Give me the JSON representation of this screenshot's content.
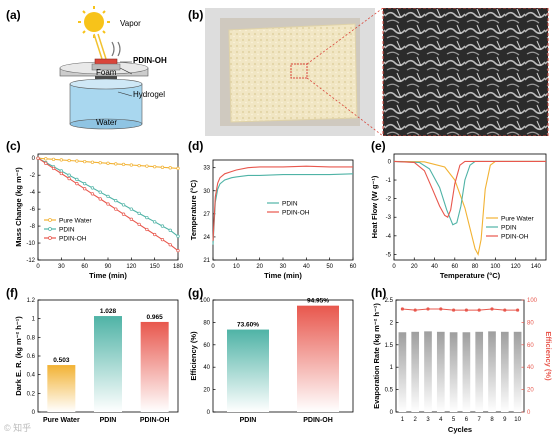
{
  "panels": {
    "a": {
      "letter": "(a)",
      "labels": {
        "vapor": "Vapor",
        "pdin_oh": "PDIN-OH",
        "foam": "Foam",
        "hydrogel": "Hydrogel",
        "water": "Water"
      }
    },
    "b": {
      "letter": "(b)"
    },
    "c": {
      "letter": "(c)"
    },
    "d": {
      "letter": "(d)"
    },
    "e": {
      "letter": "(e)"
    },
    "f": {
      "letter": "(f)"
    },
    "g": {
      "letter": "(g)"
    },
    "h": {
      "letter": "(h)"
    }
  },
  "colors": {
    "orange": "#f2b233",
    "teal": "#4fb3a6",
    "red": "#e8574d",
    "blue": "#2a6ea8"
  },
  "watermark": "© 知乎",
  "chart_data": [
    {
      "id": "c",
      "type": "line",
      "xlabel": "Time (min)",
      "ylabel": "Mass Change (kg m⁻²)",
      "xlim": [
        0,
        180
      ],
      "ylim": [
        -12,
        0.5
      ],
      "xticks": [
        0,
        30,
        60,
        90,
        120,
        150,
        180
      ],
      "yticks": [
        0,
        -2,
        -4,
        -6,
        -8,
        -10,
        -12
      ],
      "x": [
        0,
        10,
        20,
        30,
        40,
        50,
        60,
        70,
        80,
        90,
        100,
        110,
        120,
        130,
        140,
        150,
        160,
        170,
        180
      ],
      "series": [
        {
          "name": "Pure Water",
          "color": "#f2b233",
          "values": [
            0,
            -0.07,
            -0.13,
            -0.2,
            -0.27,
            -0.33,
            -0.4,
            -0.47,
            -0.53,
            -0.6,
            -0.67,
            -0.73,
            -0.8,
            -0.87,
            -0.93,
            -1.0,
            -1.07,
            -1.13,
            -1.2
          ]
        },
        {
          "name": "PDIN",
          "color": "#4fb3a6",
          "values": [
            0,
            -0.5,
            -1.0,
            -1.5,
            -2.0,
            -2.5,
            -3.0,
            -3.5,
            -4.0,
            -4.5,
            -5.0,
            -5.5,
            -6.0,
            -6.5,
            -7.0,
            -7.5,
            -8.0,
            -8.5,
            -9.2
          ]
        },
        {
          "name": "PDIN-OH",
          "color": "#e8574d",
          "values": [
            0,
            -0.6,
            -1.2,
            -1.8,
            -2.4,
            -3.0,
            -3.6,
            -4.2,
            -4.8,
            -5.4,
            -6.0,
            -6.6,
            -7.2,
            -7.8,
            -8.4,
            -9.0,
            -9.6,
            -10.2,
            -10.9
          ]
        }
      ],
      "legend": "bottom-left"
    },
    {
      "id": "d",
      "type": "line",
      "xlabel": "Time (min)",
      "ylabel": "Temperature (°C)",
      "xlim": [
        0,
        60
      ],
      "ylim": [
        21,
        34
      ],
      "xticks": [
        0,
        10,
        20,
        30,
        40,
        50,
        60
      ],
      "yticks": [
        21,
        24,
        27,
        30,
        33
      ],
      "x": [
        0,
        1,
        2,
        3,
        5,
        8,
        10,
        15,
        20,
        30,
        40,
        50,
        60
      ],
      "series": [
        {
          "name": "PDIN",
          "color": "#4fb3a6",
          "values": [
            23,
            28.5,
            30.2,
            30.9,
            31.4,
            31.7,
            31.8,
            32.0,
            32.0,
            32.1,
            32.1,
            32.1,
            32.2
          ]
        },
        {
          "name": "PDIN-OH",
          "color": "#e8574d",
          "values": [
            23.5,
            29.2,
            31.0,
            31.7,
            32.2,
            32.5,
            32.7,
            33.0,
            33.1,
            33.1,
            33.2,
            33.1,
            33.1
          ]
        }
      ],
      "legend": "center"
    },
    {
      "id": "e",
      "type": "line",
      "xlabel": "Temperature (°C)",
      "ylabel": "Heat Flow (W g⁻¹)",
      "xlim": [
        0,
        150
      ],
      "ylim": [
        -5.3,
        0.4
      ],
      "xticks": [
        0,
        20,
        40,
        60,
        80,
        100,
        120,
        140
      ],
      "yticks": [
        0,
        -1,
        -2,
        -3,
        -4,
        -5
      ],
      "series": [
        {
          "name": "Pure Water",
          "color": "#f2b233",
          "x": [
            0,
            30,
            50,
            60,
            70,
            75,
            80,
            83,
            86,
            90,
            95,
            100,
            110,
            150
          ],
          "values": [
            0,
            -0.02,
            -0.3,
            -1.0,
            -2.5,
            -3.6,
            -4.7,
            -5.0,
            -4.2,
            -1.5,
            -0.2,
            0,
            0,
            0
          ]
        },
        {
          "name": "PDIN",
          "color": "#4fb3a6",
          "x": [
            0,
            25,
            35,
            45,
            52,
            58,
            62,
            66,
            70,
            75,
            80,
            100,
            150
          ],
          "values": [
            0,
            -0.05,
            -0.4,
            -1.4,
            -2.6,
            -3.4,
            -3.3,
            -2.4,
            -1.0,
            -0.2,
            0,
            0,
            0
          ]
        },
        {
          "name": "PDIN-OH",
          "color": "#e8574d",
          "x": [
            0,
            20,
            30,
            38,
            45,
            50,
            53,
            56,
            60,
            65,
            70,
            100,
            150
          ],
          "values": [
            0,
            -0.05,
            -0.5,
            -1.5,
            -2.4,
            -2.9,
            -3.0,
            -2.6,
            -1.2,
            -0.2,
            0,
            0,
            0
          ]
        }
      ],
      "legend": "bottom-right"
    },
    {
      "id": "f",
      "type": "bar",
      "ylabel": "Dark E. R. (kg m⁻² h⁻¹)",
      "ylim": [
        0,
        1.2
      ],
      "yticks": [
        0,
        0.2,
        0.4,
        0.6,
        0.8,
        1.0,
        1.2
      ],
      "categories": [
        "Pure Water",
        "PDIN",
        "PDIN-OH"
      ],
      "values": [
        0.503,
        1.028,
        0.965
      ],
      "labels": [
        "0.503",
        "1.028",
        "0.965"
      ],
      "colors": [
        "#f2b233",
        "#4fb3a6",
        "#e8574d"
      ]
    },
    {
      "id": "g",
      "type": "bar",
      "ylabel": "Efficiency (%)",
      "ylim": [
        0,
        100
      ],
      "yticks": [
        0,
        20,
        40,
        60,
        80,
        100
      ],
      "categories": [
        "PDIN",
        "PDIN-OH"
      ],
      "values": [
        73.6,
        94.95
      ],
      "labels": [
        "73.60%",
        "94.95%"
      ],
      "colors": [
        "#4fb3a6",
        "#e8574d"
      ]
    },
    {
      "id": "h",
      "type": "bar",
      "xlabel": "Cycles",
      "ylabel": "Evaporation Rate (kg m⁻² h⁻¹)",
      "y2label": "Efficiency (%)",
      "ylim": [
        0,
        2.5
      ],
      "yticks": [
        0,
        0.5,
        1.0,
        1.5,
        2.0,
        2.5
      ],
      "y2lim": [
        0,
        100
      ],
      "y2ticks": [
        0,
        20,
        40,
        60,
        80,
        100
      ],
      "categories": [
        "1",
        "2",
        "3",
        "4",
        "5",
        "6",
        "7",
        "8",
        "9",
        "10"
      ],
      "values": [
        1.78,
        1.79,
        1.8,
        1.79,
        1.78,
        1.78,
        1.79,
        1.8,
        1.79,
        1.79
      ],
      "efficiency": [
        92,
        91,
        92,
        92,
        91,
        91,
        91,
        92,
        91,
        91
      ]
    }
  ]
}
